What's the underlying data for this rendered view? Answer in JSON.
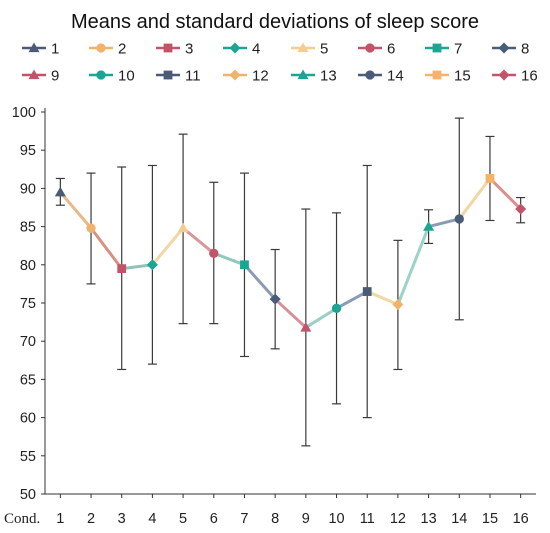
{
  "chart_data": {
    "type": "line",
    "title": "Means and standard deviations of sleep score",
    "xlabel": "Cond.",
    "ylabel": "",
    "ylim": [
      50,
      100
    ],
    "yticks": [
      50,
      55,
      60,
      65,
      70,
      75,
      80,
      85,
      90,
      95,
      100
    ],
    "categories": [
      "1",
      "2",
      "3",
      "4",
      "5",
      "6",
      "7",
      "8",
      "9",
      "10",
      "11",
      "12",
      "13",
      "14",
      "15",
      "16"
    ],
    "means": [
      89.5,
      84.8,
      79.5,
      80.0,
      84.8,
      81.5,
      80.0,
      75.5,
      71.8,
      74.3,
      76.5,
      74.8,
      85.0,
      86.0,
      91.3,
      87.3
    ],
    "std_lower": [
      87.8,
      77.5,
      66.3,
      67.0,
      72.3,
      72.3,
      68.0,
      69.0,
      56.3,
      61.8,
      60.0,
      66.3,
      82.8,
      72.8,
      85.8,
      85.5
    ],
    "std_upper": [
      91.3,
      92.0,
      92.8,
      93.0,
      97.1,
      90.8,
      92.0,
      82.0,
      87.3,
      86.8,
      93.0,
      83.2,
      87.2,
      99.2,
      96.8,
      88.8
    ],
    "grid": false,
    "legend_position": "top",
    "series": [
      {
        "name": "1",
        "color": "#4a5b78",
        "marker": "triangle"
      },
      {
        "name": "2",
        "color": "#f0b36e",
        "marker": "circle"
      },
      {
        "name": "3",
        "color": "#c2546a",
        "marker": "square"
      },
      {
        "name": "4",
        "color": "#1aa595",
        "marker": "diamond"
      },
      {
        "name": "5",
        "color": "#f3cc90",
        "marker": "triangle"
      },
      {
        "name": "6",
        "color": "#c2546a",
        "marker": "circle"
      },
      {
        "name": "7",
        "color": "#1aa595",
        "marker": "square"
      },
      {
        "name": "8",
        "color": "#4a5b78",
        "marker": "diamond"
      },
      {
        "name": "9",
        "color": "#c2546a",
        "marker": "triangle"
      },
      {
        "name": "10",
        "color": "#1aa595",
        "marker": "circle"
      },
      {
        "name": "11",
        "color": "#4a5b78",
        "marker": "square"
      },
      {
        "name": "12",
        "color": "#f0b36e",
        "marker": "diamond"
      },
      {
        "name": "13",
        "color": "#1aa595",
        "marker": "triangle"
      },
      {
        "name": "14",
        "color": "#4a5b78",
        "marker": "circle"
      },
      {
        "name": "15",
        "color": "#f6b26b",
        "marker": "square"
      },
      {
        "name": "16",
        "color": "#c2546a",
        "marker": "diamond"
      }
    ],
    "segment_colors": [
      "#e9b98a",
      "#d99083",
      "#8fc3b8",
      "#f1d7a4",
      "#d9969a",
      "#8fc9bd",
      "#8a9bb4",
      "#d6909a",
      "#98cfc7",
      "#8a9bb4",
      "#f1d7a4",
      "#9ad3c7",
      "#8a9bb4",
      "#f1d7a4",
      "#d99090"
    ]
  }
}
